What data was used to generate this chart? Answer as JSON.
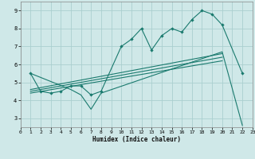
{
  "xlabel": "Humidex (Indice chaleur)",
  "xlim": [
    0,
    23
  ],
  "ylim": [
    2.5,
    9.5
  ],
  "yticks": [
    3,
    4,
    5,
    6,
    7,
    8,
    9
  ],
  "xticks": [
    0,
    1,
    2,
    3,
    4,
    5,
    6,
    7,
    8,
    9,
    10,
    11,
    12,
    13,
    14,
    15,
    16,
    17,
    18,
    19,
    20,
    21,
    22,
    23
  ],
  "bg_color": "#cfe8e8",
  "grid_color": "#aacfcf",
  "line_color": "#1a7a6e",
  "line1_x": [
    1,
    2,
    3,
    4,
    5,
    6,
    7,
    8,
    10,
    11,
    12,
    13,
    14,
    15,
    16,
    17,
    18,
    19,
    20,
    22
  ],
  "line1_y": [
    5.5,
    4.5,
    4.4,
    4.5,
    4.8,
    4.8,
    4.3,
    4.5,
    7.0,
    7.4,
    8.0,
    6.8,
    7.6,
    8.0,
    7.8,
    8.5,
    9.0,
    8.8,
    8.2,
    5.5
  ],
  "line2_x": [
    1,
    5,
    6,
    7,
    8,
    20,
    22
  ],
  "line2_y": [
    5.5,
    4.6,
    4.3,
    3.5,
    4.4,
    6.7,
    2.6
  ],
  "line3_x": [
    1,
    20
  ],
  "line3_y": [
    4.6,
    6.6
  ],
  "line4_x": [
    1,
    20
  ],
  "line4_y": [
    4.5,
    6.4
  ],
  "line5_x": [
    1,
    20
  ],
  "line5_y": [
    4.4,
    6.2
  ]
}
